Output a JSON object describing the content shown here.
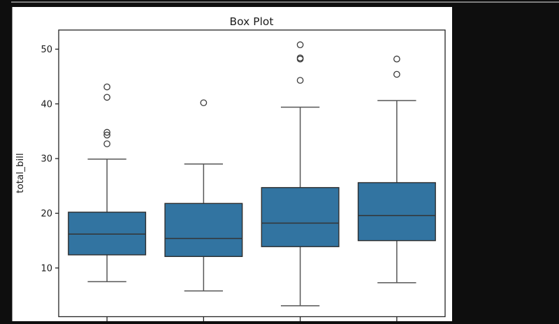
{
  "window": {
    "background_color": "#0e0e0e",
    "top_border_color": "#7d7d7d"
  },
  "figure": {
    "background_color": "#ffffff"
  },
  "chart_data": {
    "type": "box",
    "title": "Box Plot",
    "xlabel": "",
    "ylabel": "total_bill",
    "ylim": [
      1.1,
      53.5
    ],
    "y_ticks": [
      10,
      20,
      30,
      40,
      50
    ],
    "x_tick_labels": [
      "",
      "",
      "",
      ""
    ],
    "grid": false,
    "legend": "none",
    "boxes": [
      {
        "whisker_low": 7.5,
        "q1": 12.4,
        "median": 16.2,
        "q3": 20.2,
        "whisker_high": 29.9,
        "outliers": [
          32.7,
          34.3,
          34.8,
          41.2,
          43.1
        ]
      },
      {
        "whisker_low": 5.8,
        "q1": 12.1,
        "median": 15.4,
        "q3": 21.8,
        "whisker_high": 29.0,
        "outliers": [
          40.2
        ]
      },
      {
        "whisker_low": 3.1,
        "q1": 13.9,
        "median": 18.2,
        "q3": 24.7,
        "whisker_high": 39.4,
        "outliers": [
          44.3,
          48.2,
          48.4,
          50.8
        ]
      },
      {
        "whisker_low": 7.3,
        "q1": 15.0,
        "median": 19.6,
        "q3": 25.6,
        "whisker_high": 40.6,
        "outliers": [
          45.4,
          48.2
        ]
      }
    ],
    "colors": {
      "box_fill": "#3274a1",
      "box_edge": "#2e2e2e",
      "whisker": "#565656",
      "cap": "#565656",
      "median": "#343434",
      "spine": "#242424",
      "tick_text": "#1c1c1c",
      "outlier_edge": "#3c3c3c"
    }
  }
}
